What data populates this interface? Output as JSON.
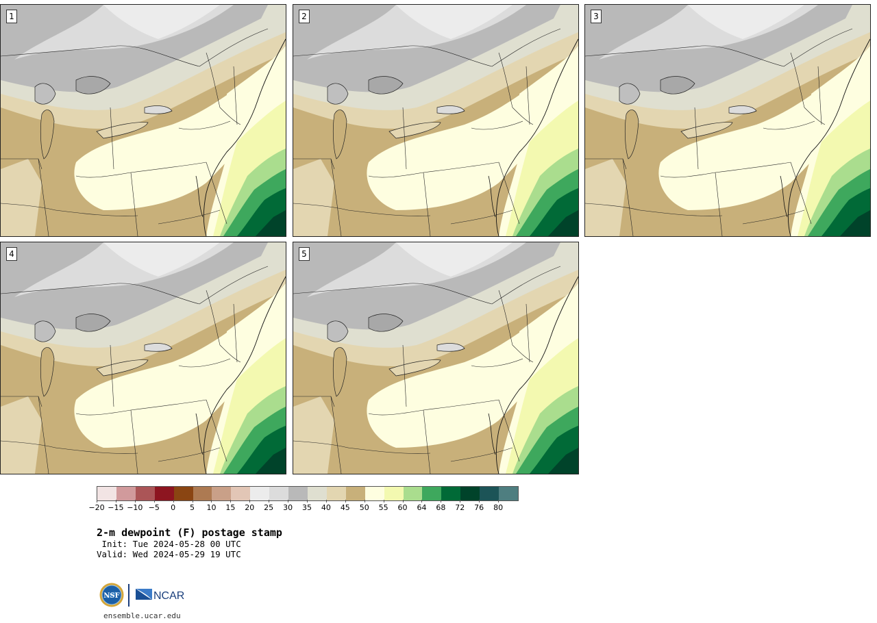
{
  "title": "2-m dewpoint (F) postage stamp",
  "init": " Init: Tue 2024-05-28 00 UTC",
  "valid": "Valid: Wed 2024-05-29 19 UTC",
  "website": "ensemble.ucar.edu",
  "logos": {
    "nsf": "NSF",
    "ncar": "NCAR"
  },
  "panels": [
    {
      "label": "1"
    },
    {
      "label": "2"
    },
    {
      "label": "3"
    },
    {
      "label": "4"
    },
    {
      "label": "5"
    }
  ],
  "colorbar": {
    "colors": [
      "#f2e4e4",
      "#d19a9c",
      "#ab5557",
      "#8d1520",
      "#8a4512",
      "#ad7a52",
      "#c9a088",
      "#e2c6b6",
      "#ececec",
      "#dcdcdc",
      "#b9b9b9",
      "#dfdfd0",
      "#e3d6b1",
      "#c8b07a",
      "#fefee0",
      "#f3f9b0",
      "#aadd8e",
      "#3ea85d",
      "#016a37",
      "#00432a",
      "#1c5457",
      "#4e7e80"
    ],
    "tick_values": [
      "−20",
      "−15",
      "−10",
      "−5",
      "0",
      "5",
      "10",
      "15",
      "20",
      "25",
      "30",
      "35",
      "40",
      "45",
      "50",
      "55",
      "60",
      "64",
      "68",
      "72",
      "76",
      "80"
    ],
    "tick_positions": [
      0,
      1,
      2,
      3,
      4,
      5,
      6,
      7,
      8,
      9,
      10,
      11,
      12,
      13,
      14,
      15,
      16,
      17,
      18,
      19,
      20,
      21
    ]
  },
  "map_colors": {
    "very_dry": "#b9b9b9",
    "dry": "#dcdcdc",
    "cool": "#dfdfd0",
    "mild": "#e3d6b1",
    "moderate": "#c8b07a",
    "humid": "#fefee0",
    "humid2": "#f3f9b0",
    "moist": "#aadd8e",
    "wet": "#3ea85d",
    "very_wet": "#016a37",
    "tropical": "#00432a"
  }
}
